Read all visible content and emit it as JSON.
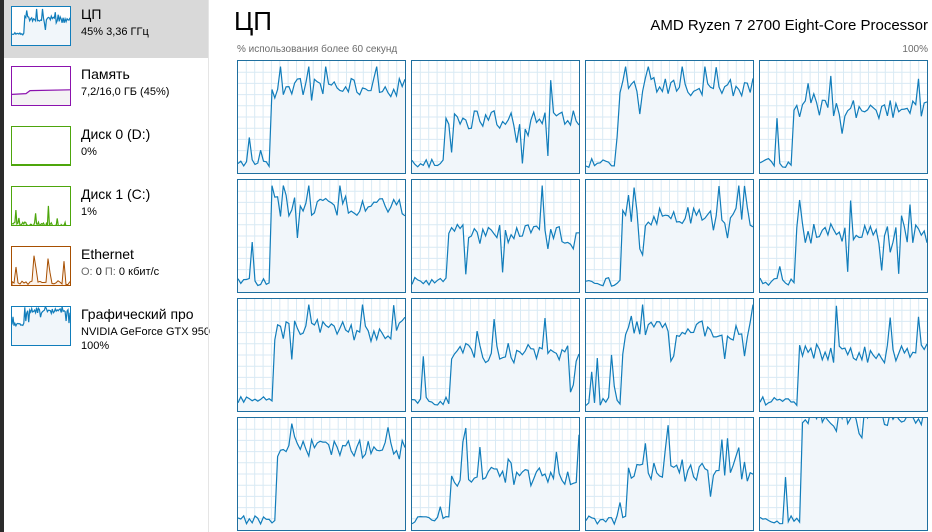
{
  "sidebar": {
    "items": [
      {
        "title": "ЦП",
        "line1": "45% 3,36 ГГц",
        "line2": "",
        "color": "#117dbb",
        "fill": "#f1f6fa",
        "selected": true,
        "icon": "cpu-graph"
      },
      {
        "title": "Память",
        "line1": "7,2/16,0 ГБ (45%)",
        "line2": "",
        "color": "#8b12ae",
        "fill": "#f4f2f4",
        "selected": false,
        "icon": "memory-graph"
      },
      {
        "title": "Диск 0 (D:)",
        "line1": "0%",
        "line2": "",
        "color": "#4da60c",
        "fill": "#eff7e8",
        "selected": false,
        "icon": "disk-graph"
      },
      {
        "title": "Диск 1 (C:)",
        "line1": "1%",
        "line2": "",
        "color": "#4da60c",
        "fill": "#eff7e8",
        "selected": false,
        "icon": "disk-graph"
      },
      {
        "title": "Ethernet",
        "line1_label_send": "О:",
        "line1_send": "0",
        "line1_label_recv": "П:",
        "line1_recv": "0 кбит/с",
        "line2": "",
        "color": "#a74f01",
        "fill": "#fcf3eb",
        "selected": false,
        "icon": "network-graph"
      },
      {
        "title": "Графический про",
        "line1": "NVIDIA GeForce GTX 950",
        "line2": "100%",
        "color": "#117dbb",
        "fill": "#f1f6fa",
        "selected": false,
        "icon": "gpu-graph"
      }
    ]
  },
  "main": {
    "title": "ЦП",
    "processor": "AMD Ryzen 7 2700 Eight-Core Processor",
    "usage_label": "% использования более 60 секунд",
    "usage_max": "100%"
  },
  "colors": {
    "accent": "#117dbb",
    "grid": "#d9eaf4",
    "graph_fill": "#f1f6fa",
    "core_border": "#1f6f9f"
  }
}
